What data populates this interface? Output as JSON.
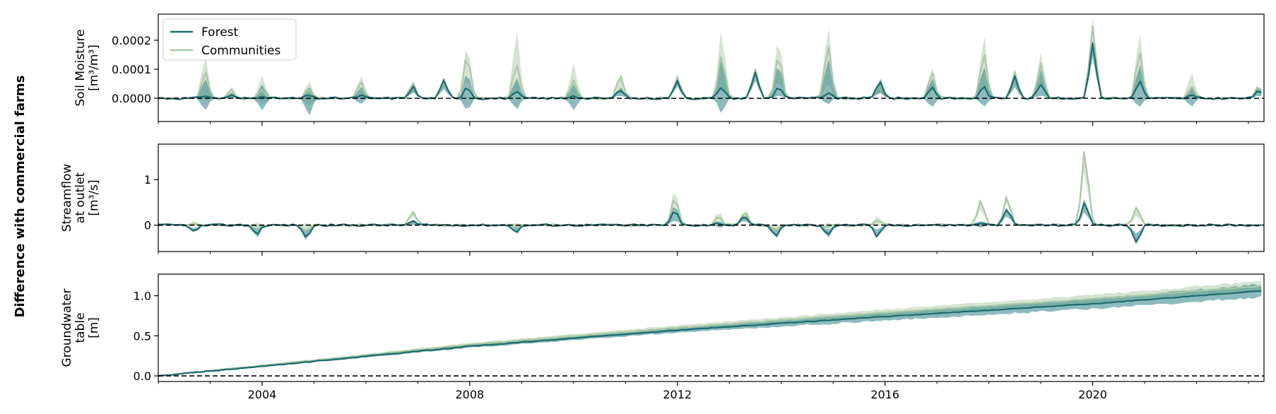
{
  "figure": {
    "suptitle": "Difference with commercial farms"
  },
  "legend": {
    "items": [
      {
        "label": "Forest",
        "color": "#1b6b6e"
      },
      {
        "label": "Communities",
        "color": "#a9c9a4"
      }
    ]
  },
  "style": {
    "forest_line": "#1b6b6e",
    "forest_band": "#2f8387",
    "communities_line": "#a9c9a4",
    "communities_band": "#a9c9a4",
    "zero_line": "#000000"
  },
  "chart_data": [
    {
      "type": "line",
      "id": "soil_moisture",
      "ylabel_lines": [
        "Soil Moisture",
        "[m³/m³]"
      ],
      "xlim": [
        2002.0,
        2023.3
      ],
      "ylim": [
        -8e-05,
        0.00029
      ],
      "yticks": [
        0.0,
        0.0001,
        0.0002
      ],
      "ytick_labels": [
        "0.0000",
        "0.0001",
        "0.0002"
      ],
      "xticks": [
        2004,
        2008,
        2012,
        2016,
        2020
      ],
      "xtick_labels": [
        "",
        "",
        "",
        "",
        ""
      ],
      "zero_line": true,
      "legend": "upper-left",
      "peaks": [
        {
          "x": 2002.9,
          "forest": 1e-05,
          "fb": [
            -4e-05,
            7e-05
          ],
          "comm": 9e-05,
          "cb": [
            -1e-05,
            0.00015
          ]
        },
        {
          "x": 2003.4,
          "forest": 1e-05,
          "fb": [
            0.0,
            2e-05
          ],
          "comm": 3e-05,
          "cb": [
            0.0,
            4e-05
          ]
        },
        {
          "x": 2004.0,
          "forest": 1e-05,
          "fb": [
            -4e-05,
            5e-05
          ],
          "comm": 3e-05,
          "cb": [
            -2e-05,
            8e-05
          ]
        },
        {
          "x": 2004.9,
          "forest": 1e-05,
          "fb": [
            -6e-05,
            4e-05
          ],
          "comm": 3e-05,
          "cb": [
            -3e-05,
            6e-05
          ]
        },
        {
          "x": 2005.9,
          "forest": 1e-05,
          "fb": [
            -2e-05,
            4e-05
          ],
          "comm": 6e-05,
          "cb": [
            0.0,
            8e-05
          ]
        },
        {
          "x": 2006.9,
          "forest": 4e-05,
          "fb": [
            2e-05,
            5e-05
          ],
          "comm": 5e-05,
          "cb": [
            2e-05,
            6e-05
          ]
        },
        {
          "x": 2007.5,
          "forest": 6e-05,
          "fb": [
            3e-05,
            7e-05
          ],
          "comm": 6e-05,
          "cb": [
            4e-05,
            7e-05
          ]
        },
        {
          "x": 2007.95,
          "forest": 4e-05,
          "fb": [
            -4e-05,
            9e-05
          ],
          "comm": 0.00015,
          "cb": [
            7e-05,
            0.00019
          ]
        },
        {
          "x": 2008.9,
          "forest": 2e-05,
          "fb": [
            -4e-05,
            7e-05
          ],
          "comm": 0.00012,
          "cb": [
            2e-05,
            0.00024
          ]
        },
        {
          "x": 2010.0,
          "forest": 1e-05,
          "fb": [
            -4e-05,
            5e-05
          ],
          "comm": 6e-05,
          "cb": [
            0.0,
            0.00012
          ]
        },
        {
          "x": 2010.9,
          "forest": 3e-05,
          "fb": [
            1e-05,
            4e-05
          ],
          "comm": 8e-05,
          "cb": [
            3e-05,
            9e-05
          ]
        },
        {
          "x": 2012.0,
          "forest": 6e-05,
          "fb": [
            4e-05,
            8e-05
          ],
          "comm": 7e-05,
          "cb": [
            5e-05,
            8e-05
          ]
        },
        {
          "x": 2012.85,
          "forest": 4e-05,
          "fb": [
            -5e-05,
            0.00014
          ],
          "comm": 0.00015,
          "cb": [
            4e-05,
            0.00024
          ]
        },
        {
          "x": 2013.5,
          "forest": 9e-05,
          "fb": [
            6e-05,
            0.0001
          ],
          "comm": 0.0001,
          "cb": [
            8e-05,
            0.00011
          ]
        },
        {
          "x": 2013.95,
          "forest": 4e-05,
          "fb": [
            1e-05,
            0.00012
          ],
          "comm": 0.00015,
          "cb": [
            6e-05,
            0.00021
          ]
        },
        {
          "x": 2014.9,
          "forest": 2e-05,
          "fb": [
            -2e-05,
            0.00014
          ],
          "comm": 0.00018,
          "cb": [
            5e-05,
            0.00025
          ]
        },
        {
          "x": 2015.9,
          "forest": 6e-05,
          "fb": [
            2e-05,
            7e-05
          ],
          "comm": 6e-05,
          "cb": [
            2e-05,
            7e-05
          ]
        },
        {
          "x": 2016.9,
          "forest": 4e-05,
          "fb": [
            -3e-05,
            7e-05
          ],
          "comm": 9e-05,
          "cb": [
            3e-05,
            0.00011
          ]
        },
        {
          "x": 2017.9,
          "forest": 4e-05,
          "fb": [
            -3e-05,
            0.00011
          ],
          "comm": 0.00015,
          "cb": [
            4e-05,
            0.00022
          ]
        },
        {
          "x": 2018.5,
          "forest": 8e-05,
          "fb": [
            4e-05,
            9e-05
          ],
          "comm": 9e-05,
          "cb": [
            5e-05,
            0.0001
          ]
        },
        {
          "x": 2019.0,
          "forest": 5e-05,
          "fb": [
            1e-05,
            0.0001
          ],
          "comm": 0.00012,
          "cb": [
            5e-05,
            0.00016
          ]
        },
        {
          "x": 2020.0,
          "forest": 0.00019,
          "fb": [
            0.00014,
            0.0002
          ],
          "comm": 0.00025,
          "cb": [
            0.0002,
            0.00028
          ]
        },
        {
          "x": 2020.9,
          "forest": 6e-05,
          "fb": [
            -3e-05,
            0.00012
          ],
          "comm": 0.00016,
          "cb": [
            5e-05,
            0.00023
          ]
        },
        {
          "x": 2021.9,
          "forest": 1e-05,
          "fb": [
            -3e-05,
            4e-05
          ],
          "comm": 4e-05,
          "cb": [
            0.0,
            9e-05
          ]
        },
        {
          "x": 2023.2,
          "forest": 3e-05,
          "fb": [
            1e-05,
            4e-05
          ],
          "comm": 4e-05,
          "cb": [
            2e-05,
            4e-05
          ]
        }
      ]
    },
    {
      "type": "line",
      "id": "streamflow",
      "ylabel_lines": [
        "Streamflow",
        "at outlet",
        "[m³/s]"
      ],
      "xlim": [
        2002.0,
        2023.3
      ],
      "ylim": [
        -0.58,
        1.78
      ],
      "yticks": [
        0,
        1
      ],
      "ytick_labels": [
        "0",
        "1"
      ],
      "xticks": [
        2004,
        2008,
        2012,
        2016,
        2020
      ],
      "xtick_labels": [
        "",
        "",
        "",
        "",
        ""
      ],
      "zero_line": true,
      "peaks": [
        {
          "x": 2002.7,
          "forest": -0.15,
          "fb": [
            -0.18,
            -0.08
          ],
          "comm": 0.05,
          "cb": [
            -0.02,
            0.1
          ]
        },
        {
          "x": 2003.9,
          "forest": -0.2,
          "fb": [
            -0.28,
            -0.08
          ],
          "comm": -0.05,
          "cb": [
            -0.12,
            0.05
          ]
        },
        {
          "x": 2004.85,
          "forest": -0.28,
          "fb": [
            -0.35,
            -0.15
          ],
          "comm": -0.12,
          "cb": [
            -0.2,
            0.05
          ]
        },
        {
          "x": 2006.9,
          "forest": 0.08,
          "fb": [
            0.0,
            0.12
          ],
          "comm": 0.3,
          "cb": [
            0.2,
            0.35
          ]
        },
        {
          "x": 2008.9,
          "forest": -0.15,
          "fb": [
            -0.2,
            -0.05
          ],
          "comm": -0.03,
          "cb": [
            -0.08,
            0.05
          ]
        },
        {
          "x": 2011.95,
          "forest": 0.32,
          "fb": [
            0.1,
            0.45
          ],
          "comm": 0.6,
          "cb": [
            0.4,
            0.8
          ]
        },
        {
          "x": 2012.8,
          "forest": 0.05,
          "fb": [
            -0.05,
            0.1
          ],
          "comm": 0.2,
          "cb": [
            0.1,
            0.3
          ]
        },
        {
          "x": 2013.3,
          "forest": 0.2,
          "fb": [
            0.1,
            0.25
          ],
          "comm": 0.3,
          "cb": [
            0.2,
            0.35
          ]
        },
        {
          "x": 2013.9,
          "forest": -0.25,
          "fb": [
            -0.3,
            -0.1
          ],
          "comm": -0.1,
          "cb": [
            -0.15,
            0.0
          ]
        },
        {
          "x": 2014.9,
          "forest": -0.2,
          "fb": [
            -0.28,
            -0.1
          ],
          "comm": -0.05,
          "cb": [
            -0.12,
            0.05
          ]
        },
        {
          "x": 2015.85,
          "forest": -0.25,
          "fb": [
            -0.3,
            -0.1
          ],
          "comm": 0.1,
          "cb": [
            0.0,
            0.2
          ]
        },
        {
          "x": 2017.85,
          "forest": 0.05,
          "fb": [
            -0.05,
            0.1
          ],
          "comm": 0.55,
          "cb": [
            0.35,
            0.6
          ]
        },
        {
          "x": 2018.35,
          "forest": 0.35,
          "fb": [
            0.2,
            0.4
          ],
          "comm": 0.65,
          "cb": [
            0.5,
            0.7
          ]
        },
        {
          "x": 2019.85,
          "forest": 0.52,
          "fb": [
            0.3,
            0.6
          ],
          "comm": 1.65,
          "cb": [
            1.2,
            1.72
          ]
        },
        {
          "x": 2020.85,
          "forest": -0.4,
          "fb": [
            -0.45,
            -0.2
          ],
          "comm": 0.4,
          "cb": [
            0.2,
            0.45
          ]
        }
      ]
    },
    {
      "type": "line",
      "id": "groundwater",
      "ylabel_lines": [
        "Groundwater",
        "table",
        "[m]"
      ],
      "xlim": [
        2002.0,
        2023.3
      ],
      "ylim": [
        -0.07,
        1.27
      ],
      "yticks": [
        0.0,
        0.5,
        1.0
      ],
      "ytick_labels": [
        "0.0",
        "0.5",
        "1.0"
      ],
      "xticks": [
        2004,
        2008,
        2012,
        2016,
        2020
      ],
      "xtick_labels": [
        "2004",
        "2008",
        "2012",
        "2016",
        "2020"
      ],
      "zero_line": true,
      "trend": {
        "x": [
          2002.0,
          2004.0,
          2008.0,
          2012.0,
          2016.0,
          2020.0,
          2023.2
        ],
        "forest": [
          0.0,
          0.12,
          0.37,
          0.57,
          0.74,
          0.9,
          1.06
        ],
        "forest_band_half": [
          0.005,
          0.01,
          0.02,
          0.03,
          0.05,
          0.06,
          0.08
        ],
        "comm": [
          0.0,
          0.13,
          0.39,
          0.6,
          0.79,
          0.96,
          1.12
        ],
        "comm_band_half": [
          0.005,
          0.01,
          0.02,
          0.03,
          0.04,
          0.05,
          0.06
        ]
      }
    }
  ]
}
